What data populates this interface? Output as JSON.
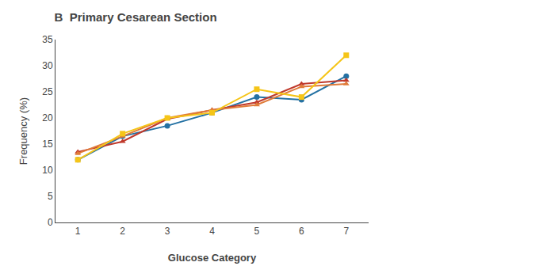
{
  "chart_data": {
    "type": "line",
    "title": "B  Primary Cesarean Section",
    "xlabel": "Glucose Category",
    "ylabel": "Frequency (%)",
    "x": [
      1,
      2,
      3,
      4,
      5,
      6,
      7
    ],
    "series": [
      {
        "color": "#2471A3",
        "marker": "circle",
        "values": [
          12.0,
          16.5,
          18.5,
          21.0,
          24.0,
          23.5,
          28.0
        ]
      },
      {
        "color": "#C0392B",
        "marker": "triangle-up",
        "values": [
          13.5,
          15.5,
          19.8,
          21.5,
          23.0,
          26.5,
          27.2
        ]
      },
      {
        "color": "#E07B39",
        "marker": "triangle-up",
        "values": [
          13.2,
          16.5,
          20.0,
          21.5,
          22.5,
          26.0,
          26.5
        ]
      },
      {
        "color": "#F5C518",
        "marker": "square",
        "values": [
          12.0,
          17.0,
          20.0,
          21.0,
          25.5,
          24.0,
          32.0
        ]
      }
    ],
    "xlim": [
      0.5,
      7.5
    ],
    "xticks": [
      1,
      2,
      3,
      4,
      5,
      6,
      7
    ],
    "ylim": [
      0,
      35
    ],
    "yticks": [
      0,
      5,
      10,
      15,
      20,
      25,
      30,
      35
    ],
    "grid": false
  }
}
